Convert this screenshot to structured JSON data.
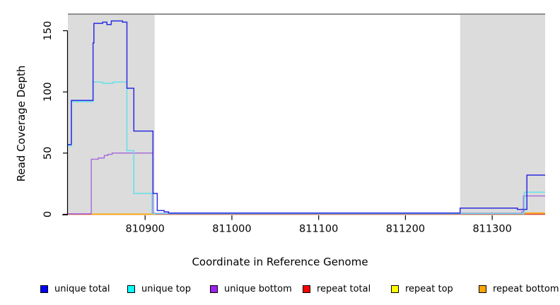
{
  "figure": {
    "xlabel": "Coordinate in Reference Genome",
    "ylabel": "Read Coverage Depth"
  },
  "legend": {
    "items": [
      {
        "label": "unique total",
        "color": "#0000FF"
      },
      {
        "label": "unique top",
        "color": "#00FFFF"
      },
      {
        "label": "unique bottom",
        "color": "#A020F0"
      },
      {
        "label": "repeat total",
        "color": "#FF0000"
      },
      {
        "label": "repeat top",
        "color": "#FFFF00"
      },
      {
        "label": "repeat bottom",
        "color": "#FFA500"
      }
    ]
  },
  "chart_data": {
    "type": "line",
    "subtype": "step-after",
    "title": "",
    "xlabel": "Coordinate in Reference Genome",
    "ylabel": "Read Coverage Depth",
    "xlim": [
      810811,
      811361
    ],
    "ylim": [
      0,
      164
    ],
    "x_ticks": [
      810900,
      811000,
      811100,
      811200,
      811300
    ],
    "y_ticks": [
      0,
      50,
      100,
      150
    ],
    "grid": false,
    "legend_position": "bottom",
    "top_rule_color": "#909090",
    "highlight_band_color": "#DCDCDC",
    "highlight_regions": [
      {
        "x0": 810811,
        "x1": 810911
      },
      {
        "x0": 811263,
        "x1": 811361
      }
    ],
    "series": [
      {
        "name": "repeat top",
        "color": "#FFFF00",
        "line_color": "#FFFF00",
        "segments": [
          [
            [
              810811,
              0
            ],
            [
              811361,
              0
            ]
          ]
        ]
      },
      {
        "name": "repeat total",
        "color": "#FF0000",
        "line_color": "#d84057",
        "segments": [
          [
            [
              810811,
              0
            ],
            [
              811361,
              0
            ]
          ]
        ]
      },
      {
        "name": "repeat bottom",
        "color": "#FFA500",
        "line_color": "#FFA500",
        "segments": [
          [
            [
              810838,
              0.2
            ],
            [
              810912,
              0.2
            ]
          ],
          [
            [
              811337,
              1
            ],
            [
              811361,
              1
            ]
          ]
        ]
      },
      {
        "name": "unique bottom",
        "color": "#A020F0",
        "line_color": "#a96fd9",
        "segments": [
          [
            [
              810811,
              0.4
            ],
            [
              810838,
              45
            ],
            [
              810846,
              46
            ],
            [
              810853,
              48
            ],
            [
              810857,
              49
            ],
            [
              810862,
              50
            ],
            [
              810909,
              0.8
            ],
            [
              811334,
              2
            ],
            [
              811336,
              15
            ],
            [
              811361,
              15
            ]
          ]
        ]
      },
      {
        "name": "unique top",
        "color": "#00FFFF",
        "line_color": "#63dfea",
        "segments": [
          [
            [
              810811,
              56
            ],
            [
              810815,
              92
            ],
            [
              810840,
              108
            ],
            [
              810851,
              107
            ],
            [
              810863,
              108
            ],
            [
              810879,
              52
            ],
            [
              810887,
              17
            ],
            [
              810908,
              0.5
            ],
            [
              811337,
              18
            ],
            [
              811361,
              18
            ]
          ]
        ]
      },
      {
        "name": "unique total",
        "color": "#0000FF",
        "line_color": "#2b2be2",
        "segments": [
          [
            [
              810811,
              57
            ],
            [
              810815,
              93
            ],
            [
              810840,
              140
            ],
            [
              810841,
              156
            ],
            [
              810851,
              157
            ],
            [
              810856,
              155
            ],
            [
              810861,
              158
            ],
            [
              810874,
              157
            ],
            [
              810879,
              103
            ],
            [
              810887,
              68
            ],
            [
              810909,
              17
            ],
            [
              810914,
              3
            ],
            [
              810922,
              2
            ],
            [
              810927,
              1
            ],
            [
              811263,
              5
            ],
            [
              811329,
              4
            ],
            [
              811340,
              32
            ],
            [
              811361,
              32
            ]
          ]
        ]
      }
    ]
  }
}
